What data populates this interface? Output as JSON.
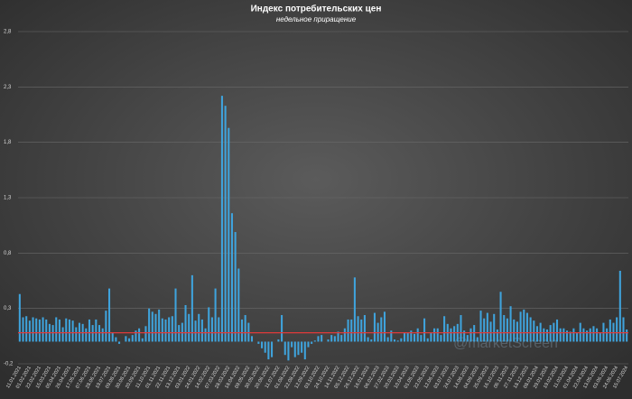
{
  "chart_data": {
    "type": "bar",
    "title": "Индекс потребительских цен",
    "subtitle": "недельное приращение",
    "watermark": "@marketScreen",
    "color": "#3fa3dc",
    "grid": true,
    "reference_line": {
      "value": 0.08,
      "color": "#e03a3a"
    },
    "ylim": [
      -0.2,
      2.8
    ],
    "yticks": [
      {
        "value": -0.2,
        "label": "-0,2"
      },
      {
        "value": 0.3,
        "label": "0,3"
      },
      {
        "value": 0.8,
        "label": "0,8"
      },
      {
        "value": 1.3,
        "label": "1,3"
      },
      {
        "value": 1.8,
        "label": "1,8"
      },
      {
        "value": 2.3,
        "label": "2,3"
      },
      {
        "value": 2.8,
        "label": "2,8"
      }
    ],
    "categories": [
      "11.01.2021",
      null,
      null,
      "01.02.2021",
      null,
      null,
      "22.02.2021",
      null,
      null,
      "15.03.2021",
      null,
      null,
      "05.04.2021",
      null,
      null,
      "26.04.2021",
      null,
      null,
      "17.05.2021",
      null,
      null,
      "07.06.2021",
      null,
      null,
      "28.06.2021",
      null,
      null,
      "19.07.2021",
      null,
      null,
      "09.08.2021",
      null,
      null,
      "30.08.2021",
      null,
      null,
      "20.09.2021",
      null,
      null,
      "11.10.2021",
      null,
      null,
      "01.11.2021",
      null,
      null,
      "22.11.2021",
      null,
      null,
      "13.12.2021",
      null,
      null,
      "03.01.2022",
      null,
      null,
      "24.01.2022",
      null,
      null,
      "14.02.2022",
      null,
      null,
      "07.03.2022",
      null,
      null,
      "28.03.2022",
      null,
      null,
      "18.04.2022",
      null,
      null,
      "09.05.2022",
      null,
      null,
      "30.05.2022",
      null,
      null,
      "20.06.2022",
      null,
      null,
      "11.07.2022",
      null,
      null,
      "01.08.2022",
      null,
      null,
      "22.08.2022",
      null,
      null,
      "12.09.2022",
      null,
      null,
      "03.10.2022",
      null,
      null,
      "24.10.2022",
      null,
      null,
      "14.11.2022",
      null,
      null,
      "05.12.2022",
      null,
      null,
      "26.12.2022",
      null,
      null,
      "16.01.2023",
      null,
      null,
      "06.02.2023",
      null,
      null,
      "27.02.2023",
      null,
      null,
      "20.03.2023",
      null,
      null,
      "10.04.2023",
      null,
      null,
      "01.05.2023",
      null,
      null,
      "22.05.2023",
      null,
      null,
      "12.06.2023",
      null,
      null,
      "03.07.2023",
      null,
      null,
      "24.07.2023",
      null,
      null,
      "14.08.2023",
      null,
      null,
      "04.09.2023",
      null,
      null,
      "25.09.2023",
      null,
      null,
      "16.10.2023",
      null,
      null,
      "06.11.2023",
      null,
      null,
      "27.11.2023",
      null,
      null,
      "18.12.2023",
      null,
      null,
      "08.01.2024",
      null,
      null,
      "29.01.2024",
      null,
      null,
      "19.02.2024",
      null,
      null,
      "11.03.2024",
      null,
      null,
      "01.04.2024",
      null,
      null,
      "22.04.2024",
      null,
      null,
      "13.05.2024",
      null,
      null,
      "03.06.2024",
      null,
      null,
      "24.06.2024",
      null,
      null,
      "15.07.2024"
    ],
    "values": [
      0.43,
      0.22,
      0.23,
      0.19,
      0.22,
      0.21,
      0.2,
      0.22,
      0.2,
      0.16,
      0.15,
      0.22,
      0.2,
      0.13,
      0.21,
      0.2,
      0.19,
      0.13,
      0.17,
      0.16,
      0.12,
      0.2,
      0.15,
      0.2,
      0.15,
      0.12,
      0.28,
      0.48,
      0.08,
      0.04,
      -0.02,
      0.0,
      0.05,
      0.03,
      0.06,
      0.1,
      0.12,
      0.03,
      0.14,
      0.3,
      0.27,
      0.25,
      0.29,
      0.21,
      0.2,
      0.22,
      0.23,
      0.48,
      0.15,
      0.17,
      0.33,
      0.25,
      0.6,
      0.19,
      0.25,
      0.2,
      0.12,
      0.31,
      0.22,
      0.48,
      0.22,
      2.22,
      2.13,
      1.93,
      1.16,
      0.99,
      0.66,
      0.2,
      0.24,
      0.17,
      0.05,
      0.0,
      -0.02,
      -0.06,
      -0.1,
      -0.16,
      -0.14,
      0.0,
      0.02,
      0.24,
      -0.12,
      -0.17,
      -0.05,
      -0.14,
      -0.12,
      -0.1,
      -0.16,
      -0.05,
      -0.02,
      0.01,
      0.05,
      0.06,
      0.0,
      0.02,
      0.06,
      0.05,
      0.09,
      0.06,
      0.12,
      0.2,
      0.2,
      0.58,
      0.23,
      0.2,
      0.24,
      0.04,
      0.02,
      0.26,
      0.17,
      0.22,
      0.27,
      0.04,
      0.1,
      0.02,
      0.01,
      0.03,
      0.08,
      0.08,
      0.1,
      0.07,
      0.12,
      0.06,
      0.21,
      0.03,
      0.08,
      0.12,
      0.12,
      0.06,
      0.23,
      0.16,
      0.12,
      0.14,
      0.16,
      0.24,
      0.1,
      0.06,
      0.12,
      0.15,
      0.04,
      0.28,
      0.21,
      0.26,
      0.18,
      0.25,
      0.11,
      0.45,
      0.24,
      0.21,
      0.32,
      0.2,
      0.18,
      0.27,
      0.29,
      0.26,
      0.22,
      0.19,
      0.14,
      0.17,
      0.12,
      0.11,
      0.15,
      0.17,
      0.2,
      0.12,
      0.12,
      0.1,
      0.09,
      0.12,
      0.08,
      0.17,
      0.12,
      0.1,
      0.12,
      0.14,
      0.12,
      0.08,
      0.17,
      0.12,
      0.2,
      0.17,
      0.22,
      0.64,
      0.22,
      0.11
    ]
  }
}
